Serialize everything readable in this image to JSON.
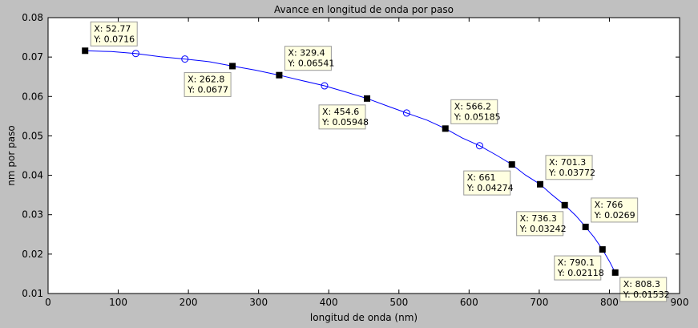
{
  "chart_data": {
    "type": "line",
    "title": "Avance en longitud de onda por paso",
    "xlabel": "longitud de onda (nm)",
    "ylabel": "nm por paso",
    "xlim": [
      0,
      900
    ],
    "ylim": [
      0.01,
      0.08
    ],
    "xticks": [
      0,
      100,
      200,
      300,
      400,
      500,
      600,
      700,
      800,
      900
    ],
    "yticks": [
      0.01,
      0.02,
      0.03,
      0.04,
      0.05,
      0.06,
      0.07,
      0.08
    ],
    "ytick_labels": [
      "0.01",
      "0.02",
      "0.03",
      "0.04",
      "0.05",
      "0.06",
      "0.07",
      "0.08"
    ],
    "grid": false,
    "line_color": "#0000ff",
    "curve": {
      "x": [
        52.77,
        90,
        125,
        160,
        195,
        230,
        262.8,
        295,
        329.4,
        360,
        394,
        425,
        454.6,
        485,
        511,
        540,
        566.2,
        590,
        615,
        640,
        661,
        680,
        701.3,
        718,
        736.3,
        752,
        766,
        778,
        790.1,
        800,
        808.3
      ],
      "y": [
        0.0716,
        0.0714,
        0.0709,
        0.0701,
        0.0695,
        0.0688,
        0.0677,
        0.0667,
        0.06541,
        0.0641,
        0.0627,
        0.0611,
        0.05948,
        0.0575,
        0.0558,
        0.054,
        0.05185,
        0.0495,
        0.0475,
        0.045,
        0.04274,
        0.0401,
        0.03772,
        0.0351,
        0.03242,
        0.0298,
        0.0269,
        0.0243,
        0.02118,
        0.0182,
        0.01532
      ]
    },
    "open_markers": {
      "x": [
        125,
        195,
        394,
        511,
        615
      ],
      "y": [
        0.0709,
        0.0695,
        0.0627,
        0.0558,
        0.0475
      ]
    },
    "datatips": [
      {
        "x": 52.77,
        "y": 0.0716,
        "x_text": "X: 52.77",
        "y_text": "Y: 0.0716",
        "box": "above-right"
      },
      {
        "x": 262.8,
        "y": 0.0677,
        "x_text": "X: 262.8",
        "y_text": "Y: 0.0677",
        "box": "below-left"
      },
      {
        "x": 329.4,
        "y": 0.06541,
        "x_text": "X: 329.4",
        "y_text": "Y: 0.06541",
        "box": "above-right"
      },
      {
        "x": 454.6,
        "y": 0.05948,
        "x_text": "X: 454.6",
        "y_text": "Y: 0.05948",
        "box": "below-left"
      },
      {
        "x": 566.2,
        "y": 0.05185,
        "x_text": "X: 566.2",
        "y_text": "Y: 0.05185",
        "box": "above-right"
      },
      {
        "x": 661,
        "y": 0.04274,
        "x_text": "X: 661",
        "y_text": "Y: 0.04274",
        "box": "below-left"
      },
      {
        "x": 701.3,
        "y": 0.03772,
        "x_text": "X: 701.3",
        "y_text": "Y: 0.03772",
        "box": "above-right"
      },
      {
        "x": 736.3,
        "y": 0.03242,
        "x_text": "X: 736.3",
        "y_text": "Y: 0.03242",
        "box": "below-left"
      },
      {
        "x": 766,
        "y": 0.0269,
        "x_text": "X: 766",
        "y_text": "Y: 0.0269",
        "box": "above-right"
      },
      {
        "x": 790.1,
        "y": 0.02118,
        "x_text": "X: 790.1",
        "y_text": "Y: 0.02118",
        "box": "below-left"
      },
      {
        "x": 808.3,
        "y": 0.01532,
        "x_text": "X: 808.3",
        "y_text": "Y: 0.01532",
        "box": "below-right"
      }
    ],
    "colors": {
      "figure_background": "#c0c0c0",
      "axes_background": "#ffffff",
      "datatip_fill": "#ffffe1",
      "marker_fill": "#000000"
    }
  }
}
